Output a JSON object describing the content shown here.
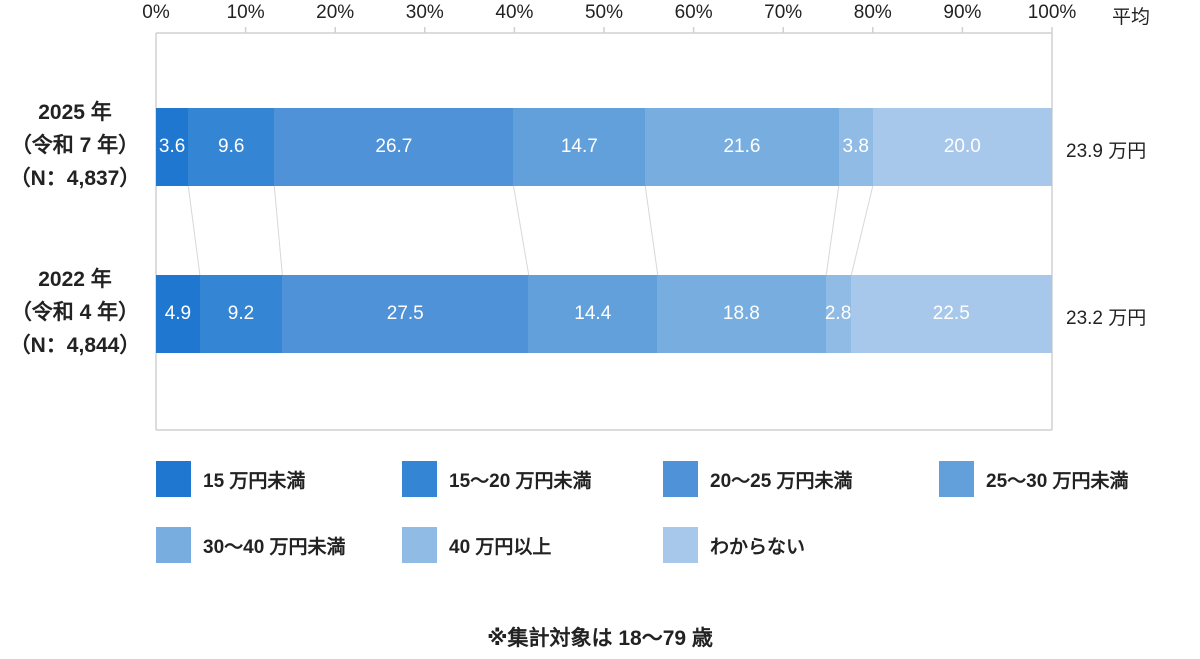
{
  "chart_data": {
    "type": "bar",
    "orientation": "horizontal-stacked-100",
    "title": "",
    "xlabel": "",
    "ylabel": "",
    "xlim": [
      0,
      100
    ],
    "x_ticks": [
      "0%",
      "10%",
      "20%",
      "30%",
      "40%",
      "50%",
      "60%",
      "70%",
      "80%",
      "90%",
      "100%"
    ],
    "categories": [
      {
        "lines": [
          "2025 年",
          "（令和 7 年）",
          "（N：4,837）"
        ],
        "average": "23.9 万円"
      },
      {
        "lines": [
          "2022 年",
          "（令和 4 年）",
          "（N：4,844）"
        ],
        "average": "23.2 万円"
      }
    ],
    "average_header": "平均",
    "series": [
      {
        "name": "15 万円未満",
        "color": "#1f77d0",
        "values": [
          3.6,
          4.9
        ]
      },
      {
        "name": "15〜20 万円未満",
        "color": "#3585d5",
        "values": [
          9.6,
          9.2
        ]
      },
      {
        "name": "20〜25 万円未満",
        "color": "#4f92d8",
        "values": [
          26.7,
          27.5
        ]
      },
      {
        "name": "25〜30 万円未満",
        "color": "#62a0dc",
        "values": [
          14.7,
          14.4
        ]
      },
      {
        "name": "30〜40 万円未満",
        "color": "#78ade0",
        "values": [
          21.6,
          18.8
        ]
      },
      {
        "name": "40 万円以上",
        "color": "#8fbbe5",
        "values": [
          3.8,
          2.8
        ]
      },
      {
        "name": "わからない",
        "color": "#a7c8eb",
        "values": [
          20.0,
          22.5
        ]
      }
    ],
    "value_labels": [
      [
        "3.6",
        "9.6",
        "26.7",
        "14.7",
        "21.6",
        "3.8",
        "20.0"
      ],
      [
        "4.9",
        "9.2",
        "27.5",
        "14.4",
        "18.8",
        "2.8",
        "22.5"
      ]
    ],
    "grid": false,
    "legend_position": "bottom",
    "note": "※集計対象は 18〜79 歳"
  }
}
